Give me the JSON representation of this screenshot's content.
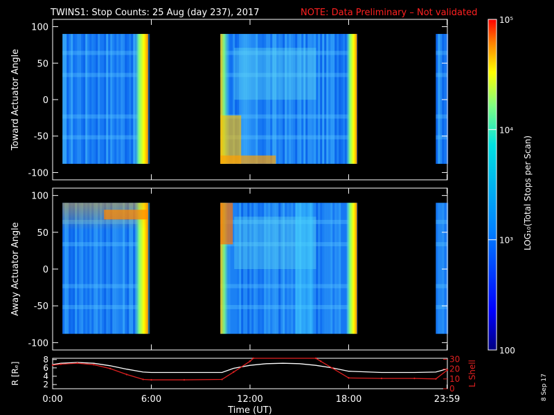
{
  "title": "TWINS1: Stop Counts: 25 Aug (day 237), 2017",
  "note": "NOTE: Data Preliminary – Not validated",
  "date_stamp": "8 Sep 17",
  "colors": {
    "background": "#000000",
    "foreground": "#ffffff",
    "note": "#ff2020",
    "lshell": "#e02020"
  },
  "chart_data": [
    {
      "type": "heatmap",
      "ylabel": "Toward Actuator Angle",
      "ylim": [
        -110,
        110
      ],
      "yticks": [
        100,
        50,
        0,
        -50,
        -100
      ],
      "xlim": [
        0,
        24
      ],
      "data_intervals_hours": [
        [
          0.6,
          5.8
        ],
        [
          10.2,
          18.5
        ],
        [
          23.3,
          24
        ]
      ],
      "angle_range": [
        -88,
        90
      ]
    },
    {
      "type": "heatmap",
      "ylabel": "Away Actuator Angle",
      "ylim": [
        -110,
        110
      ],
      "yticks": [
        100,
        50,
        0,
        -50,
        -100
      ],
      "xlim": [
        0,
        24
      ],
      "data_intervals_hours": [
        [
          0.6,
          5.8
        ],
        [
          10.2,
          18.5
        ],
        [
          23.3,
          24
        ]
      ],
      "angle_range": [
        -88,
        90
      ]
    },
    {
      "type": "line",
      "ylabel_left": "R [Rₑ]",
      "ylabel_right": "L Shell",
      "yticks_left": [
        2,
        4,
        6,
        8
      ],
      "yticks_right": [
        0,
        10,
        20,
        30
      ],
      "xlim": [
        0,
        24
      ],
      "xticks": [
        "0:00",
        "6:00",
        "12:00",
        "18:00",
        "23:59"
      ],
      "xtick_hours": [
        0,
        6,
        12,
        18,
        23.98
      ],
      "xlabel": "Time (UT)",
      "series": [
        {
          "axis": "R",
          "color": "#ffffff",
          "x": [
            0,
            0.5,
            1.5,
            2.5,
            3.5,
            4.5,
            5.5,
            6,
            8,
            10.3,
            11,
            12,
            13,
            14,
            15,
            16,
            17,
            18,
            20,
            22,
            23.3,
            24
          ],
          "y": [
            6.8,
            7.1,
            7.3,
            7.1,
            6.5,
            5.7,
            5.0,
            4.9,
            4.9,
            4.9,
            5.9,
            6.6,
            7.0,
            7.1,
            7.0,
            6.6,
            6.0,
            5.2,
            4.9,
            4.9,
            5.0,
            5.8
          ]
        },
        {
          "axis": "L",
          "color": "#e02020",
          "x": [
            0,
            0.5,
            1.5,
            2.5,
            3.5,
            4.5,
            5.5,
            6,
            8,
            10.3,
            11,
            12,
            12.2,
            16,
            16.3,
            17,
            18,
            20,
            22,
            23.3,
            24
          ],
          "y": [
            24,
            25,
            26,
            24.5,
            20.5,
            14.5,
            9.5,
            9,
            9,
            9.5,
            17,
            28,
            31,
            31,
            28,
            21,
            11,
            10.5,
            10.5,
            10,
            19
          ]
        }
      ]
    },
    {
      "type": "colorbar",
      "label": "LOG₁₀(Total Stops per Scan)",
      "tick_labels": [
        "10⁵",
        "10⁴",
        "10³",
        "100"
      ],
      "range_log10": [
        2,
        5
      ]
    }
  ]
}
